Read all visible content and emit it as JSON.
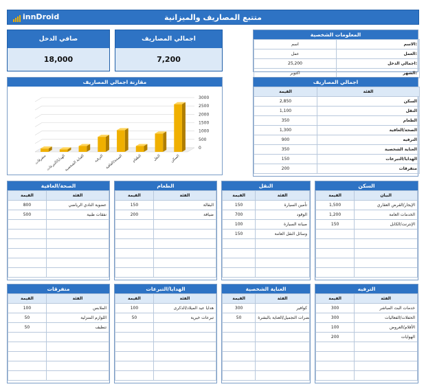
{
  "header": {
    "title": "متتبع المصاريف والميزانية",
    "logo": "innDroid"
  },
  "kpis": {
    "net_income_label": "صافي الدخل",
    "net_income_value": "18,000",
    "total_expenses_label": "اجمالي المصاريف",
    "total_expenses_value": "7,200"
  },
  "personal": {
    "title": "المعلومات الشخصية",
    "rows": [
      {
        "label": "الاسم:",
        "value": "اسم"
      },
      {
        "label": "العمل:",
        "value": "عمل"
      },
      {
        "label": "اجمالي الدخل:",
        "value": "25,200"
      },
      {
        "label": "الشهر:",
        "value": "اكتوبر"
      }
    ]
  },
  "totals": {
    "title": "اجمالي المصاريف",
    "col_category": "الفئة",
    "col_value": "القيمة",
    "rows": [
      {
        "category": "السكن",
        "value": "2,850"
      },
      {
        "category": "النقل",
        "value": "1,100"
      },
      {
        "category": "الطعام",
        "value": "350"
      },
      {
        "category": "الصحة/العافية",
        "value": "1,300"
      },
      {
        "category": "الترفيه",
        "value": "900"
      },
      {
        "category": "العناية الشخصية",
        "value": "350"
      },
      {
        "category": "الهدايا/التبرعات",
        "value": "150"
      },
      {
        "category": "متفرقات",
        "value": "200"
      }
    ]
  },
  "chart_data": {
    "type": "bar",
    "title": "مقارنة اجمالي المصاريف",
    "categories": [
      "السكن",
      "النقل",
      "الطعام",
      "الصحة/العافية",
      "الترفيه",
      "العناية الشخصية",
      "الهدايا/التبرعات",
      "متفرقات"
    ],
    "values": [
      2850,
      1100,
      350,
      1300,
      900,
      350,
      150,
      200
    ],
    "ylim": [
      0,
      3000
    ],
    "yticks": [
      "0",
      "500",
      "1000",
      "1500",
      "2000",
      "2500",
      "3000"
    ],
    "grid": true,
    "bar_color": "#f0b000"
  },
  "sections": [
    {
      "title": "السكن",
      "col_item": "البيان",
      "col_value": "القيمة",
      "rows": [
        {
          "item": "الإيجار/القرض العقاري",
          "value": "1,500"
        },
        {
          "item": "الخدمات العامة",
          "value": "1,200"
        },
        {
          "item": "الإنترنت/الكابل",
          "value": "150"
        }
      ]
    },
    {
      "title": "النقل",
      "col_item": "الفئة",
      "col_value": "القيمة",
      "rows": [
        {
          "item": "تأمين السيارة",
          "value": "150"
        },
        {
          "item": "الوقود",
          "value": "700"
        },
        {
          "item": "صيانة السيارة",
          "value": "100"
        },
        {
          "item": "وسائل النقل العامة",
          "value": "150"
        }
      ]
    },
    {
      "title": "الطعام",
      "col_item": "الفئة",
      "col_value": "القيمة",
      "rows": [
        {
          "item": "البقالة",
          "value": "150"
        },
        {
          "item": "ضيافة",
          "value": "200"
        }
      ]
    },
    {
      "title": "الصحة/العافية",
      "col_item": "الفئة",
      "col_value": "القيمة",
      "rows": [
        {
          "item": "عضوية النادي الرياضي",
          "value": "800"
        },
        {
          "item": "نفقات طبية",
          "value": "500"
        }
      ]
    },
    {
      "title": "الترفيه",
      "col_item": "الفئة",
      "col_value": "القيمة",
      "rows": [
        {
          "item": "خدمات البث المباشر",
          "value": "300"
        },
        {
          "item": "الحفلات/الفعاليات",
          "value": "300"
        },
        {
          "item": "الأفلام/العروض",
          "value": "100"
        },
        {
          "item": "الهوايات",
          "value": "200"
        }
      ]
    },
    {
      "title": "العناية الشخصية",
      "col_item": "الفئة",
      "col_value": "القيمة",
      "rows": [
        {
          "item": "كوافير",
          "value": "300"
        },
        {
          "item": "مستحضرات التجميل/العناية بالبشرة",
          "value": "50"
        }
      ]
    },
    {
      "title": "الهدايا/التبرعات",
      "col_item": "الفئة",
      "col_value": "القيمة",
      "rows": [
        {
          "item": "هدايا عيد الميلاد/الذكرى",
          "value": "100"
        },
        {
          "item": "تبرعات خيرية",
          "value": "50"
        }
      ]
    },
    {
      "title": "متفرقات",
      "col_item": "الفئة",
      "col_value": "القيمة",
      "rows": [
        {
          "item": "الملابس",
          "value": "100"
        },
        {
          "item": "اللوازم المنزلية",
          "value": "50"
        },
        {
          "item": "تنظيف",
          "value": "50"
        }
      ]
    }
  ]
}
